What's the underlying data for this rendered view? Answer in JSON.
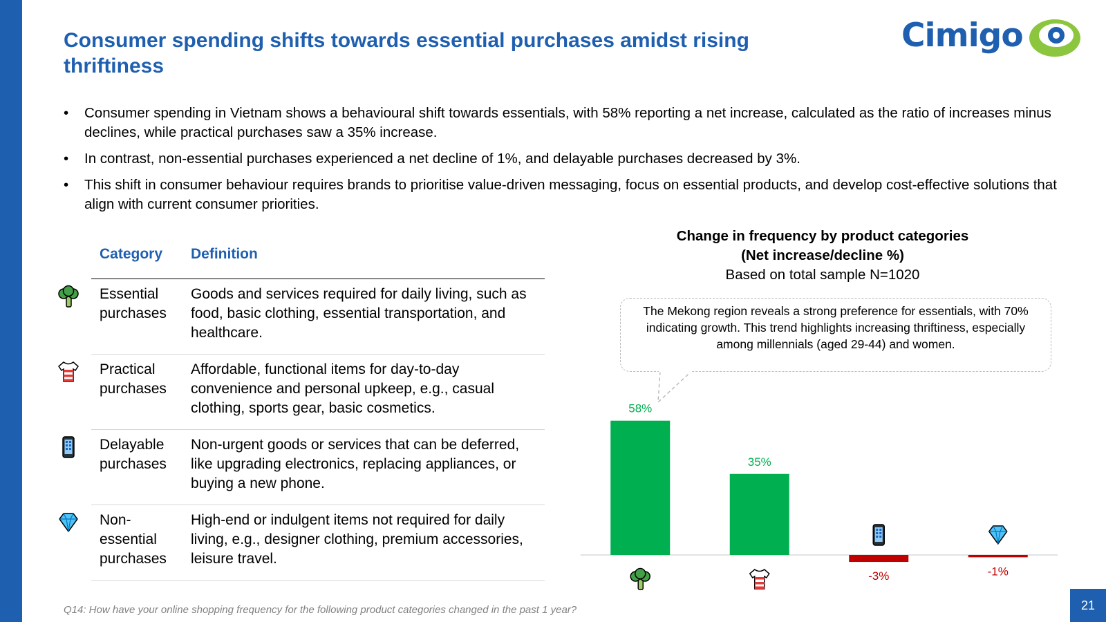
{
  "header": {
    "title": "Consumer spending shifts towards essential purchases amidst rising thriftiness",
    "logo_text": "Cimigo"
  },
  "bullets": [
    "Consumer spending in Vietnam shows a behavioural shift towards essentials, with 58% reporting a net increase, calculated as the ratio of increases minus declines, while practical purchases saw a 35% increase.",
    "In contrast, non-essential purchases experienced a net decline of 1%, and delayable purchases decreased by 3%.",
    "This shift in consumer behaviour requires brands to prioritise value-driven messaging, focus on essential products, and develop cost-effective solutions that align with current consumer priorities."
  ],
  "table": {
    "headers": {
      "category": "Category",
      "definition": "Definition"
    },
    "rows": [
      {
        "icon": "broccoli-icon",
        "category": "Essential purchases",
        "definition": "Goods and services required for daily living, such as food, basic clothing, essential transportation, and healthcare."
      },
      {
        "icon": "tshirt-icon",
        "category": "Practical purchases",
        "definition": "Affordable, functional items for day-to-day convenience and personal upkeep, e.g., casual clothing, sports gear, basic cosmetics."
      },
      {
        "icon": "phone-icon",
        "category": "Delayable purchases",
        "definition": "Non-urgent goods or services that can be deferred, like upgrading electronics, replacing appliances, or buying a new phone."
      },
      {
        "icon": "diamond-icon",
        "category": "Non-essential purchases",
        "definition": "High-end or indulgent items not required for daily living, e.g., designer clothing, premium accessories, leisure travel."
      }
    ]
  },
  "callout": {
    "text": "The Mekong region reveals a strong preference for essentials, with 70% indicating growth. This trend highlights increasing thriftiness, especially among millennials (aged 29-44)  and women."
  },
  "chart_data": {
    "type": "bar",
    "title": "Change in frequency by product categories",
    "subtitle": "(Net increase/decline %)",
    "note": "Based on total sample N=1020",
    "categories": [
      "Essential purchases",
      "Practical purchases",
      "Delayable purchases",
      "Non-essential purchases"
    ],
    "category_icons": [
      "broccoli-icon",
      "tshirt-icon",
      "phone-icon",
      "diamond-icon"
    ],
    "values": [
      58,
      35,
      -3,
      -1
    ],
    "labels": [
      "58%",
      "35%",
      "-3%",
      "-1%"
    ],
    "colors": {
      "positive": "#00b050",
      "negative": "#c00000"
    },
    "ylim": [
      -3,
      58
    ]
  },
  "footer": {
    "footnote": "Q14: How have your online shopping frequency for the following product categories changed in the past 1 year?",
    "page": "21"
  },
  "colors": {
    "brand_blue": "#1f5fb0",
    "logo_green": "#8cc63f",
    "positive": "#00b050",
    "negative": "#c00000"
  }
}
